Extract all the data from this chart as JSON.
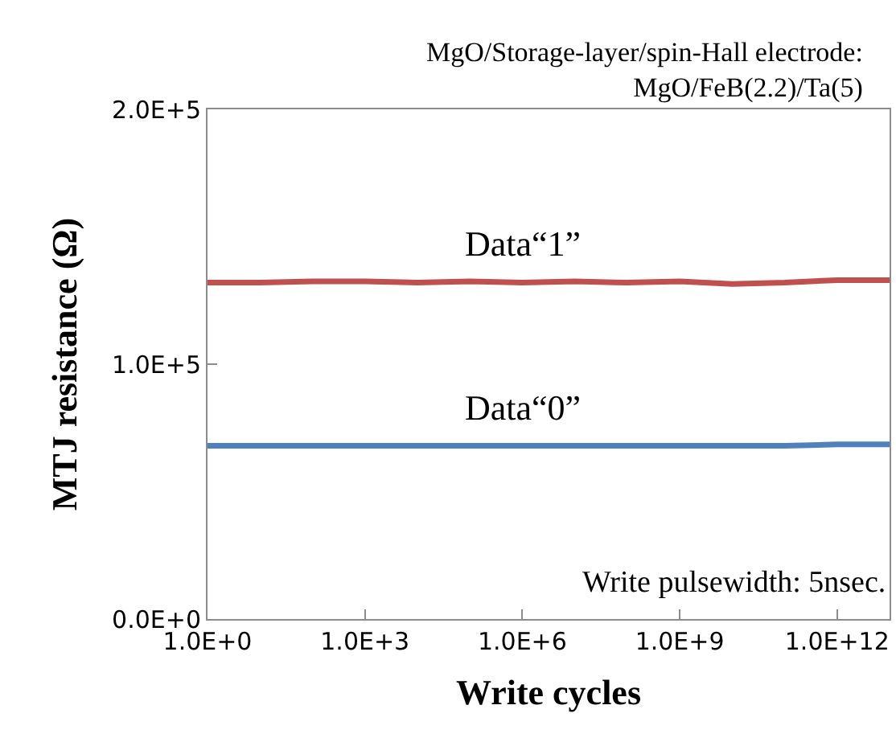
{
  "chart_data": {
    "type": "line",
    "title": "MgO/Storage-layer/spin-Hall electrode:\nMgO/FeB(2.2)/Ta(5)",
    "xlabel": "Write cycles",
    "ylabel": "MTJ resistance (Ω)",
    "log": "x",
    "x": [
      1,
      10,
      100,
      1000,
      10000,
      100000,
      1000000,
      10000000,
      100000000,
      1000000000,
      10000000000,
      100000000000,
      1000000000000,
      10000000000000
    ],
    "series": [
      {
        "name": "Data“1”",
        "color": "#c0504d",
        "values": [
          132000,
          132000,
          132500,
          132500,
          132000,
          132500,
          132000,
          132500,
          132000,
          132500,
          131500,
          132000,
          133000,
          133000
        ]
      },
      {
        "name": "Data“0”",
        "color": "#4f81bd",
        "values": [
          68000,
          68000,
          68000,
          68000,
          68000,
          68000,
          68000,
          68000,
          68000,
          68000,
          68000,
          68000,
          68500,
          68500
        ]
      }
    ],
    "xlim": [
      1,
      10000000000000
    ],
    "ylim": [
      0,
      200000
    ],
    "xticks": [
      {
        "value": 1,
        "label": "1.0E+0"
      },
      {
        "value": 1000,
        "label": "1.0E+3"
      },
      {
        "value": 1000000,
        "label": "1.0E+6"
      },
      {
        "value": 1000000000,
        "label": "1.0E+9"
      },
      {
        "value": 1000000000000,
        "label": "1.0E+12"
      }
    ],
    "yticks": [
      {
        "value": 0,
        "label": "0.0E+0"
      },
      {
        "value": 100000,
        "label": "1.0E+5"
      },
      {
        "value": 200000,
        "label": "2.0E+5"
      }
    ],
    "legend": false,
    "marker": "none",
    "line_style": "solid",
    "annotations": [
      "Write pulsewidth: 5nsec."
    ]
  }
}
